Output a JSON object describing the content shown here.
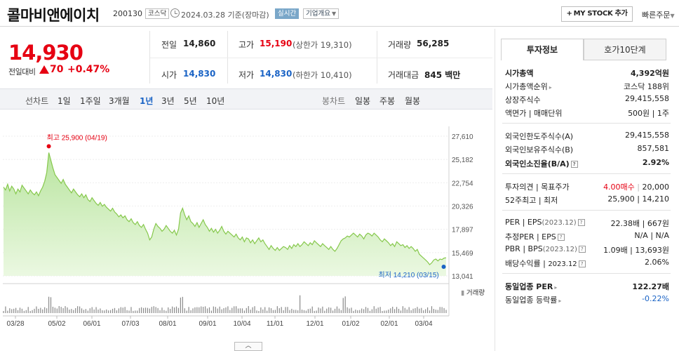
{
  "header": {
    "name": "콜마비앤에이치",
    "code": "200130",
    "market": "코스닥",
    "as_of": "2024.03.28  기준(장마감)",
    "realtime": "실시간",
    "company_info": "기업개요",
    "mystock_label": "MY STOCK 추가",
    "quick_order": "빠른주문"
  },
  "price": {
    "current": "14,930",
    "change_label": "전일대비",
    "change_value": "70",
    "change_rate": "+0.47%"
  },
  "quote": {
    "prev_label": "전일",
    "prev": "14,860",
    "high_label": "고가",
    "high": "15,190",
    "upper_limit": "(상한가 19,310)",
    "volume_label": "거래량",
    "volume": "56,285",
    "open_label": "시가",
    "open": "14,830",
    "low_label": "저가",
    "low": "14,830",
    "lower_limit": "(하한가 10,410)",
    "amount_label": "거래대금",
    "amount": "845 백만"
  },
  "period_bar": {
    "line_chart_label": "선차트",
    "line_periods": [
      "1일",
      "1주일",
      "3개월",
      "1년",
      "3년",
      "5년",
      "10년"
    ],
    "active_period": "1년",
    "candle_chart_label": "봉차트",
    "candle_periods": [
      "일봉",
      "주봉",
      "월봉"
    ]
  },
  "chart_data": {
    "type": "area",
    "x_ticks": [
      "03/28",
      "05/02",
      "06/01",
      "07/03",
      "08/01",
      "09/01",
      "10/04",
      "11/01",
      "12/01",
      "01/02",
      "02/01",
      "03/04"
    ],
    "y_ticks": [
      "27,610",
      "25,182",
      "22,754",
      "20,326",
      "17,897",
      "15,469",
      "13,041"
    ],
    "ylim": [
      13041,
      27610
    ],
    "high_annotation": "최고 25,900 (04/19)",
    "low_annotation": "최저 14,210 (03/15)",
    "volume_legend": "거래량",
    "colors": {
      "line": "#86c84c",
      "fill": "#c8ecb0",
      "high": "#e60012",
      "low": "#1a63c5"
    },
    "series": [
      {
        "values": [
          22300,
          22000,
          22600,
          21900,
          22400,
          22100,
          21600,
          22100,
          21800,
          22500,
          22200,
          21900,
          21600,
          22000,
          21700,
          21500,
          21800,
          21400,
          21900,
          22300,
          22900,
          23800,
          25900,
          25100,
          24300,
          23600,
          23300,
          23000,
          22700,
          23100,
          22600,
          22300,
          22000,
          21700,
          22100,
          21800,
          21500,
          21300,
          21600,
          21200,
          21500,
          21000,
          20800,
          21200,
          20900,
          20600,
          20400,
          20700,
          20300,
          20500,
          20200,
          20000,
          19800,
          20100,
          19700,
          19500,
          19200,
          19400,
          19100,
          19300,
          18900,
          18700,
          19000,
          18600,
          18400,
          18700,
          18300,
          18100,
          18400,
          17900,
          17500,
          16800,
          17100,
          17900,
          18500,
          18200,
          18000,
          17700,
          17900,
          18300,
          18000,
          17700,
          17500,
          17800,
          17300,
          17900,
          19600,
          20100,
          19400,
          18900,
          19300,
          18700,
          18500,
          18200,
          18600,
          18100,
          18500,
          18900,
          18400,
          18100,
          17700,
          18000,
          17600,
          17900,
          17500,
          17800,
          18200,
          17700,
          17400,
          17700,
          17500,
          17300,
          17100,
          17400,
          17000,
          16800,
          17100,
          16600,
          17000,
          16900,
          16500,
          16800,
          16400,
          16700,
          17000,
          16600,
          16800,
          16400,
          16100,
          15800,
          16200,
          15900,
          15700,
          16000,
          15700,
          15900,
          16100,
          16000,
          15800,
          16200,
          15900,
          16300,
          16100,
          16400,
          16100,
          16300,
          16600,
          16400,
          16200,
          16500,
          16300,
          16700,
          16500,
          16300,
          16100,
          16400,
          16200,
          16000,
          15800,
          16100,
          15800,
          15600,
          15900,
          16300,
          16700,
          16900,
          17000,
          17200,
          17100,
          17300,
          17500,
          17300,
          17100,
          17400,
          17200,
          16900,
          17300,
          17500,
          17400,
          17200,
          17500,
          17300,
          17100,
          16800,
          16600,
          16900,
          16700,
          16500,
          16200,
          16400,
          16100,
          16600,
          16400,
          16200,
          16300,
          16000,
          16200,
          15900,
          16100,
          15900,
          15600,
          15800,
          15300,
          15100,
          14900,
          14700,
          14500,
          14210,
          14400,
          14700,
          14800,
          14600,
          14800,
          14750,
          14900,
          14930
        ]
      }
    ]
  },
  "right_panel": {
    "tabs": [
      "투자정보",
      "호가10단계"
    ],
    "market_cap_label": "시가총액",
    "market_cap": "4,392억원",
    "market_cap_rank_label": "시가총액순위",
    "market_cap_rank": "코스닥 188위",
    "shares_label": "상장주식수",
    "shares": "29,415,558",
    "par_label": "액면가 | 매매단위",
    "par": "500원 | 1주",
    "foreign_limit_label": "외국인한도주식수(A)",
    "foreign_limit": "29,415,558",
    "foreign_hold_label": "외국인보유주식수(B)",
    "foreign_hold": "857,581",
    "foreign_ratio_label": "외국인소진율(B/A)",
    "foreign_ratio": "2.92%",
    "opinion_label": "투자의견 | 목표주가",
    "opinion": "4.00매수",
    "target": "20,000",
    "w52_label": "52주최고 | 최저",
    "w52": "25,900 | 14,210",
    "per_label": "PER | EPS",
    "per_date": "(2023.12)",
    "per_value": "22.38배 | 667원",
    "est_label": "추정PER | EPS",
    "est_value": "N/A | N/A",
    "pbr_label": "PBR | BPS",
    "pbr_date": "(2023.12)",
    "pbr_value": "1.09배 | 13,693원",
    "div_label": "배당수익률 | ",
    "div_date": "2023.12",
    "div_value": "2.06%",
    "sector_per_label": "동일업종 PER",
    "sector_per": "122.27배",
    "sector_change_label": "동일업종 등락률",
    "sector_change": "-0.22%"
  }
}
